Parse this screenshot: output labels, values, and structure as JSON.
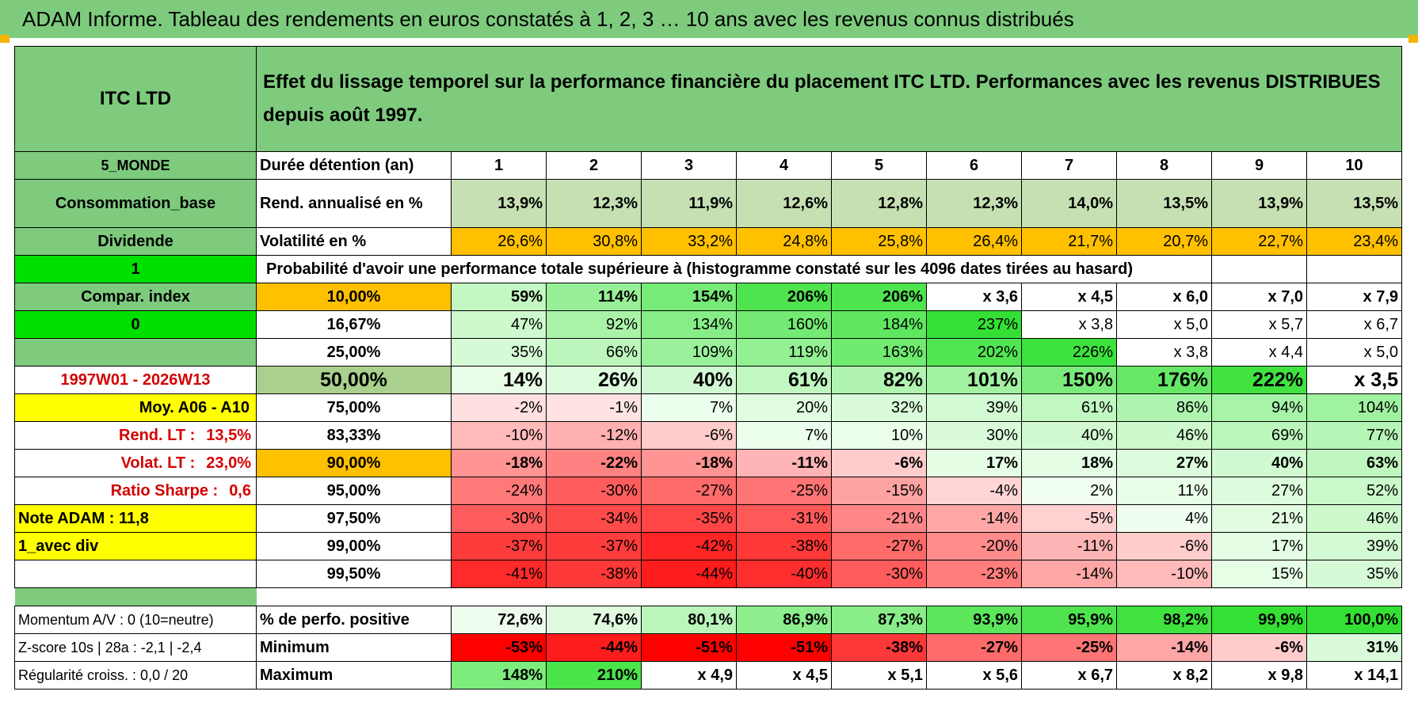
{
  "title": "ADAM Informe. Tableau des rendements en euros constatés à 1, 2, 3 … 10 ans avec les revenus connus distribués",
  "header": {
    "fund": "ITC LTD",
    "description": "Effet du lissage temporel sur la performance financière du placement ITC LTD. Performances avec les revenus DISTRIBUES depuis août 1997."
  },
  "side": {
    "zone": "5_MONDE",
    "sector": "Consommation_base",
    "income": "Dividende",
    "flag1": "1",
    "compar_label": "Compar. index",
    "flag2": "0",
    "period": "1997W01 - 2026W13",
    "avg": "Moy. A06 - A10",
    "rend_label": "Rend. LT :",
    "rend_value": "13,5%",
    "volat_label": "Volat. LT :",
    "volat_value": "23,0%",
    "sharpe_label": "Ratio Sharpe :",
    "sharpe_value": "0,6",
    "note": "Note ADAM : 11,8",
    "mode": "1_avec div",
    "momentum": "Momentum A/V : 0 (10=neutre)",
    "zscore": "Z-score 10s | 28a : -2,1 | -2,4",
    "regularity": "Régularité croiss. : 0,0 / 20"
  },
  "table": {
    "duration_label": "Durée détention (an)",
    "years": [
      "1",
      "2",
      "3",
      "4",
      "5",
      "6",
      "7",
      "8",
      "9",
      "10"
    ],
    "rend_label": "Rend. annualisé en %",
    "rend": [
      "13,9%",
      "12,3%",
      "11,9%",
      "12,6%",
      "12,8%",
      "12,3%",
      "14,0%",
      "13,5%",
      "13,9%",
      "13,5%"
    ],
    "vol_label": "Volatilité en %",
    "vol": [
      "26,6%",
      "30,8%",
      "33,2%",
      "24,8%",
      "25,8%",
      "26,4%",
      "21,7%",
      "20,7%",
      "22,7%",
      "23,4%"
    ],
    "prob_label": "Probabilité d'avoir une performance totale supérieure à (histogramme constaté sur les 4096 dates tirées au hasard)",
    "prob_rows": [
      {
        "p": "10,00%",
        "v": [
          "59%",
          "114%",
          "154%",
          "206%",
          "206%",
          "x 3,6",
          "x 4,5",
          "x 6,0",
          "x 7,0",
          "x 7,9"
        ]
      },
      {
        "p": "16,67%",
        "v": [
          "47%",
          "92%",
          "134%",
          "160%",
          "184%",
          "237%",
          "x 3,8",
          "x 5,0",
          "x 5,7",
          "x 6,7"
        ]
      },
      {
        "p": "25,00%",
        "v": [
          "35%",
          "66%",
          "109%",
          "119%",
          "163%",
          "202%",
          "226%",
          "x 3,8",
          "x 4,4",
          "x 5,0"
        ]
      },
      {
        "p": "50,00%",
        "v": [
          "14%",
          "26%",
          "40%",
          "61%",
          "82%",
          "101%",
          "150%",
          "176%",
          "222%",
          "x 3,5"
        ]
      },
      {
        "p": "75,00%",
        "v": [
          "-2%",
          "-1%",
          "7%",
          "20%",
          "32%",
          "39%",
          "61%",
          "86%",
          "94%",
          "104%"
        ]
      },
      {
        "p": "83,33%",
        "v": [
          "-10%",
          "-12%",
          "-6%",
          "7%",
          "10%",
          "30%",
          "40%",
          "46%",
          "69%",
          "77%"
        ]
      },
      {
        "p": "90,00%",
        "v": [
          "-18%",
          "-22%",
          "-18%",
          "-11%",
          "-6%",
          "17%",
          "18%",
          "27%",
          "40%",
          "63%"
        ]
      },
      {
        "p": "95,00%",
        "v": [
          "-24%",
          "-30%",
          "-27%",
          "-25%",
          "-15%",
          "-4%",
          "2%",
          "11%",
          "27%",
          "52%"
        ]
      },
      {
        "p": "97,50%",
        "v": [
          "-30%",
          "-34%",
          "-35%",
          "-31%",
          "-21%",
          "-14%",
          "-5%",
          "4%",
          "21%",
          "46%"
        ]
      },
      {
        "p": "99,00%",
        "v": [
          "-37%",
          "-37%",
          "-42%",
          "-38%",
          "-27%",
          "-20%",
          "-11%",
          "-6%",
          "17%",
          "39%"
        ]
      },
      {
        "p": "99,50%",
        "v": [
          "-41%",
          "-38%",
          "-44%",
          "-40%",
          "-30%",
          "-23%",
          "-14%",
          "-10%",
          "15%",
          "35%"
        ]
      }
    ],
    "pos_label": "% de perfo. positive",
    "pos": [
      "72,6%",
      "74,6%",
      "80,1%",
      "86,9%",
      "87,3%",
      "93,9%",
      "95,9%",
      "98,2%",
      "99,9%",
      "100,0%"
    ],
    "min_label": "Minimum",
    "min": [
      "-53%",
      "-44%",
      "-51%",
      "-51%",
      "-38%",
      "-27%",
      "-25%",
      "-14%",
      "-6%",
      "31%"
    ],
    "max_label": "Maximum",
    "max": [
      "148%",
      "210%",
      "x 4,9",
      "x 4,5",
      "x 5,1",
      "x 5,6",
      "x 6,7",
      "x 8,2",
      "x 9,8",
      "x 14,1"
    ]
  },
  "colors": {
    "header_green": "#7ecb7e",
    "lime": "#00e000",
    "yellow": "#ffff00",
    "orange": "#ffc000",
    "red_text": "#d40000",
    "positive_max": "#33e033",
    "negative_max": "#ff0000"
  }
}
